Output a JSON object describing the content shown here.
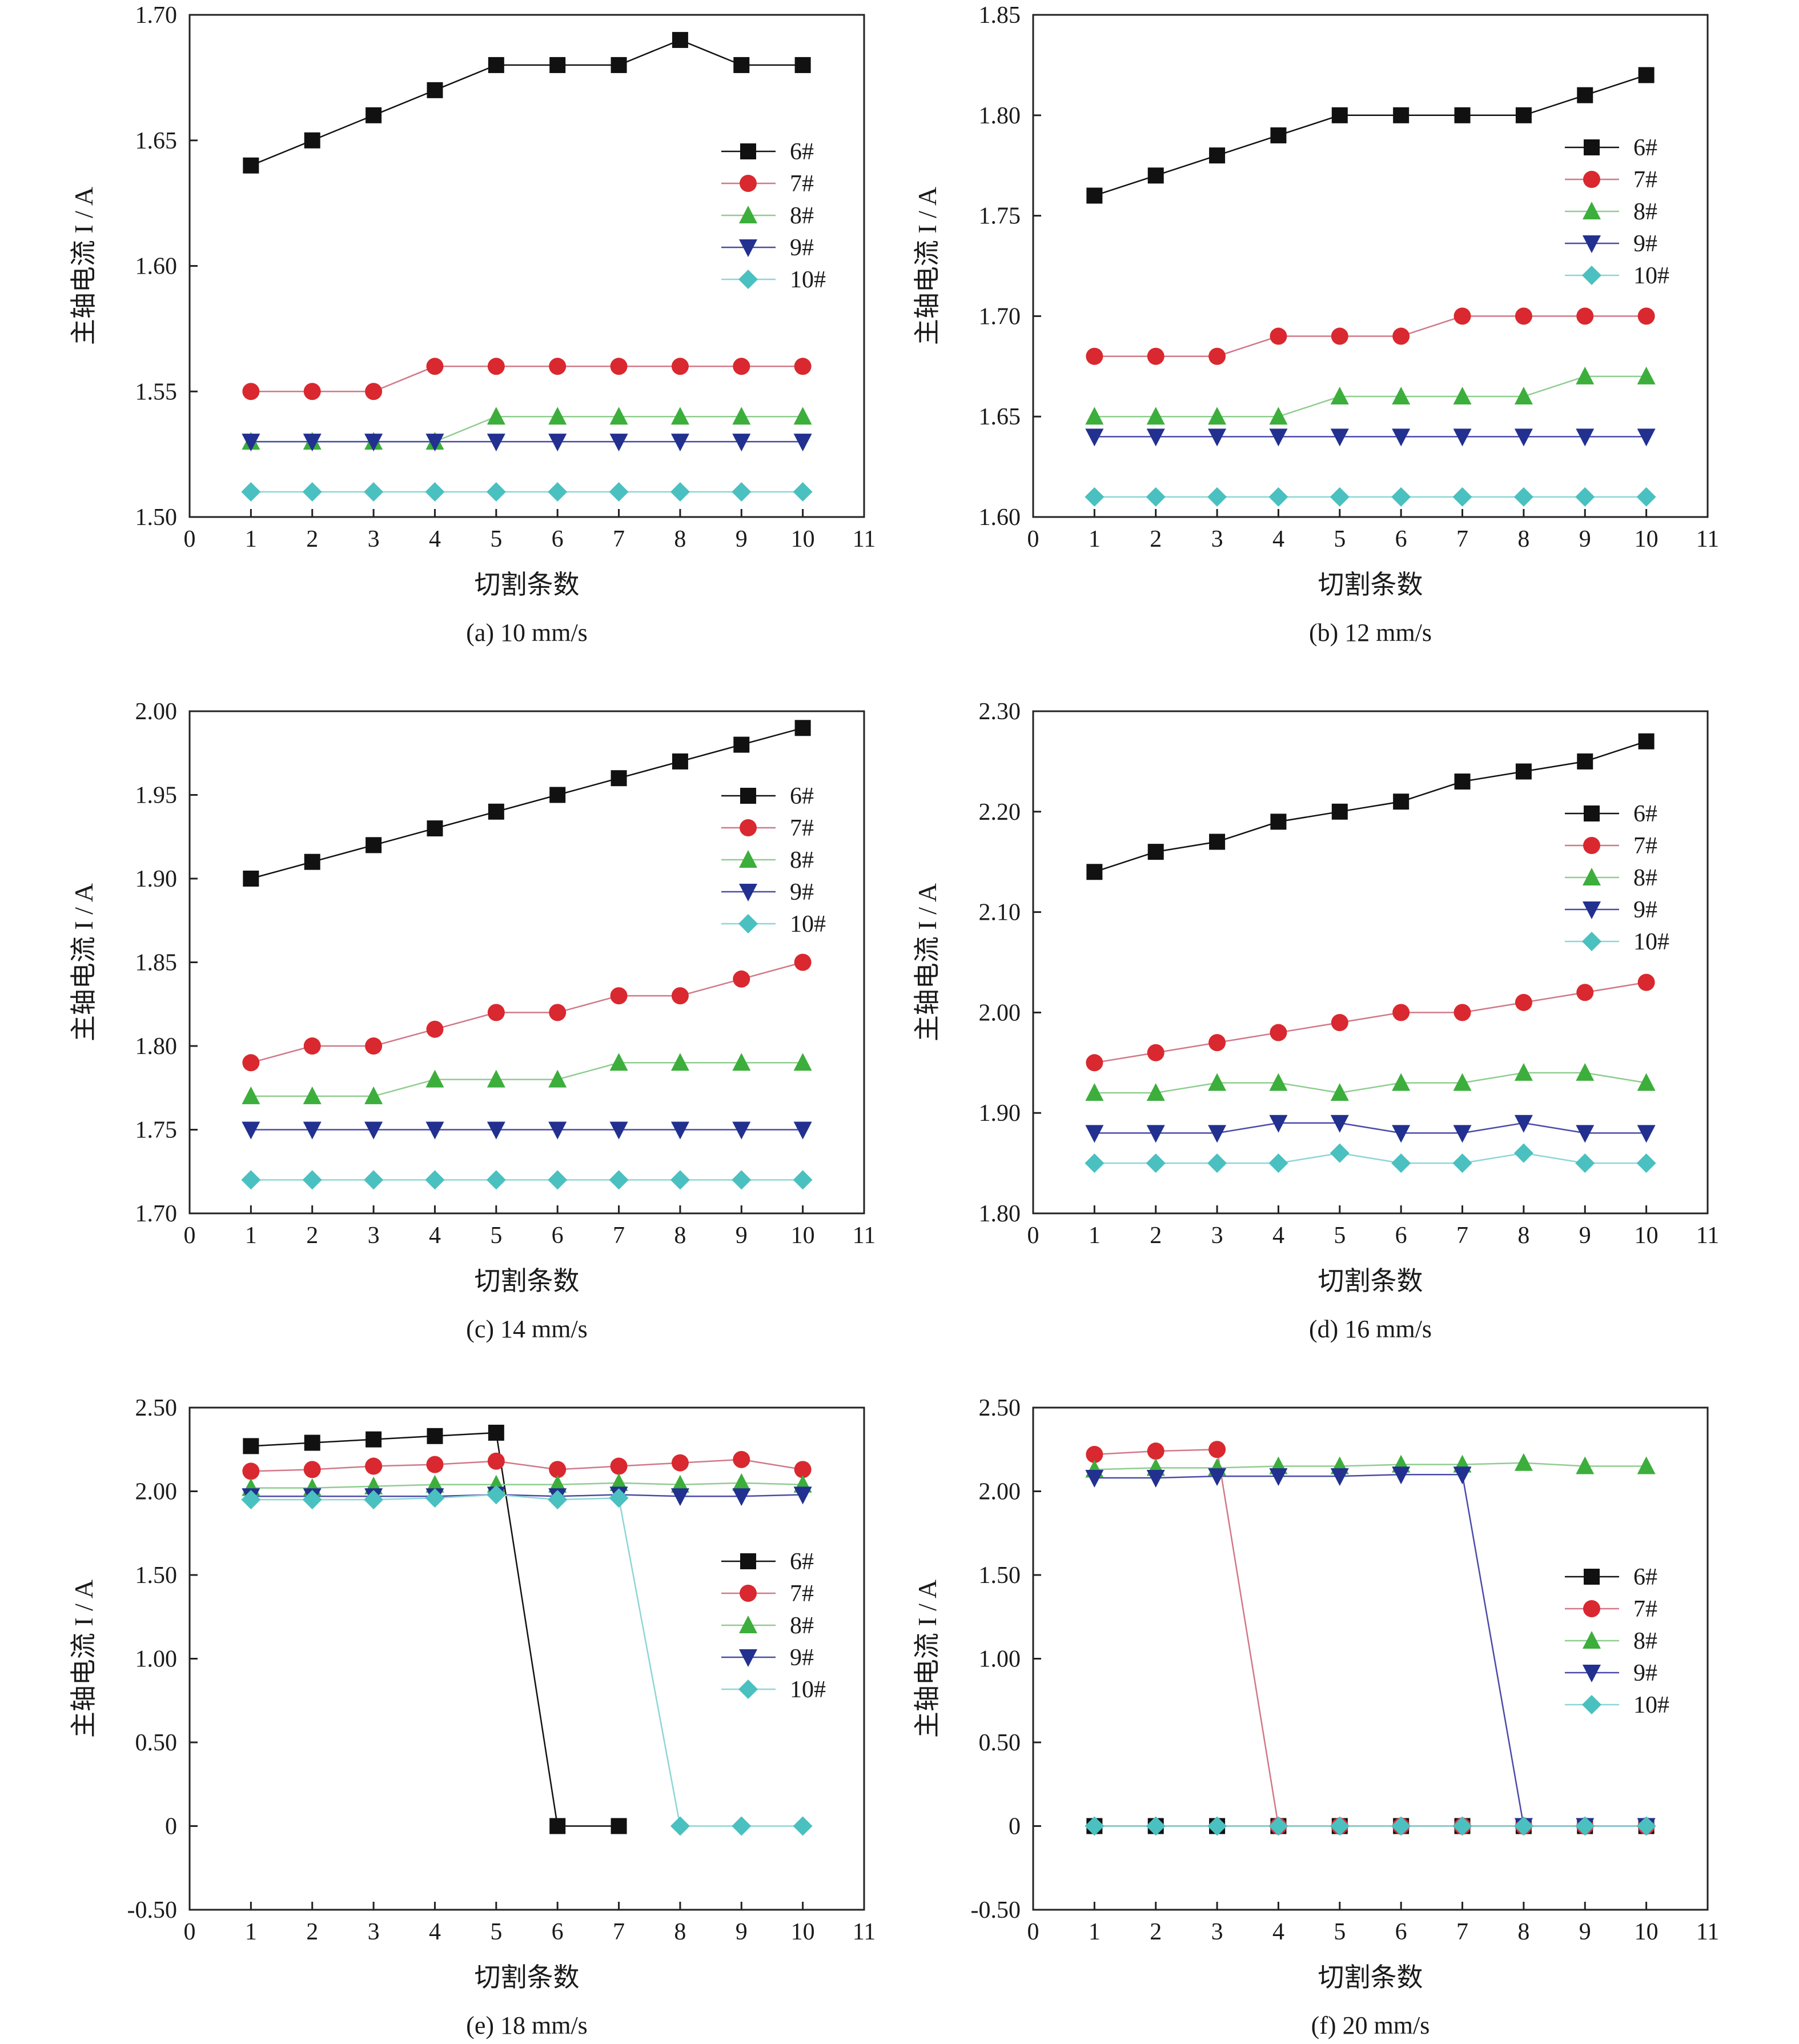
{
  "figure": {
    "styles": {
      "6#": {
        "color": "#111111",
        "marker": "square"
      },
      "7#": {
        "color": "#d9282f",
        "line": "#d07888",
        "marker": "circle"
      },
      "8#": {
        "color": "#3cae3c",
        "line": "#8fcd8f",
        "marker": "triangle-up"
      },
      "9#": {
        "color": "#22308f",
        "line": "#4a4aa8",
        "marker": "triangle-down"
      },
      "10#": {
        "color": "#4bc0c0",
        "line": "#8dd6d6",
        "marker": "diamond"
      }
    }
  },
  "chart_data": [
    {
      "type": "line",
      "caption": "(a) 10 mm/s",
      "xlabel": "切割条数",
      "ylabel": "主轴电流 I / A",
      "xlim": [
        0,
        11
      ],
      "xticks": [
        "0",
        "1",
        "2",
        "3",
        "4",
        "5",
        "6",
        "7",
        "8",
        "9",
        "10",
        "11"
      ],
      "ylim": [
        1.5,
        1.7
      ],
      "yticks": [
        "1.50",
        "1.55",
        "1.60",
        "1.65",
        "1.70"
      ],
      "legend": "right",
      "x": [
        1,
        2,
        3,
        4,
        5,
        6,
        7,
        8,
        9,
        10
      ],
      "series": [
        {
          "name": "6#",
          "values": [
            1.64,
            1.65,
            1.66,
            1.67,
            1.68,
            1.68,
            1.68,
            1.69,
            1.68,
            1.68
          ]
        },
        {
          "name": "7#",
          "values": [
            1.55,
            1.55,
            1.55,
            1.56,
            1.56,
            1.56,
            1.56,
            1.56,
            1.56,
            1.56
          ]
        },
        {
          "name": "8#",
          "values": [
            1.53,
            1.53,
            1.53,
            1.53,
            1.54,
            1.54,
            1.54,
            1.54,
            1.54,
            1.54
          ]
        },
        {
          "name": "9#",
          "values": [
            1.53,
            1.53,
            1.53,
            1.53,
            1.53,
            1.53,
            1.53,
            1.53,
            1.53,
            1.53
          ]
        },
        {
          "name": "10#",
          "values": [
            1.51,
            1.51,
            1.51,
            1.51,
            1.51,
            1.51,
            1.51,
            1.51,
            1.51,
            1.51
          ]
        }
      ]
    },
    {
      "type": "line",
      "caption": "(b) 12 mm/s",
      "xlabel": "切割条数",
      "ylabel": "主轴电流 I / A",
      "xlim": [
        0,
        11
      ],
      "xticks": [
        "0",
        "1",
        "2",
        "3",
        "4",
        "5",
        "6",
        "7",
        "8",
        "9",
        "10",
        "11"
      ],
      "ylim": [
        1.6,
        1.85
      ],
      "yticks": [
        "1.60",
        "1.65",
        "1.70",
        "1.75",
        "1.80",
        "1.85"
      ],
      "legend": "top-right",
      "x": [
        1,
        2,
        3,
        4,
        5,
        6,
        7,
        8,
        9,
        10
      ],
      "series": [
        {
          "name": "6#",
          "values": [
            1.76,
            1.77,
            1.78,
            1.79,
            1.8,
            1.8,
            1.8,
            1.8,
            1.81,
            1.82
          ]
        },
        {
          "name": "7#",
          "values": [
            1.68,
            1.68,
            1.68,
            1.69,
            1.69,
            1.69,
            1.7,
            1.7,
            1.7,
            1.7
          ]
        },
        {
          "name": "8#",
          "values": [
            1.65,
            1.65,
            1.65,
            1.65,
            1.66,
            1.66,
            1.66,
            1.66,
            1.67,
            1.67
          ]
        },
        {
          "name": "9#",
          "values": [
            1.64,
            1.64,
            1.64,
            1.64,
            1.64,
            1.64,
            1.64,
            1.64,
            1.64,
            1.64
          ]
        },
        {
          "name": "10#",
          "values": [
            1.61,
            1.61,
            1.61,
            1.61,
            1.61,
            1.61,
            1.61,
            1.61,
            1.61,
            1.61
          ]
        }
      ]
    },
    {
      "type": "line",
      "caption": "(c) 14 mm/s",
      "xlabel": "切割条数",
      "ylabel": "主轴电流 I / A",
      "xlim": [
        0,
        11
      ],
      "xticks": [
        "0",
        "1",
        "2",
        "3",
        "4",
        "5",
        "6",
        "7",
        "8",
        "9",
        "10",
        "11"
      ],
      "ylim": [
        1.7,
        2.0
      ],
      "yticks": [
        "1.70",
        "1.75",
        "1.80",
        "1.85",
        "1.90",
        "1.95",
        "2.00"
      ],
      "legend": "top-right",
      "x": [
        1,
        2,
        3,
        4,
        5,
        6,
        7,
        8,
        9,
        10
      ],
      "series": [
        {
          "name": "6#",
          "values": [
            1.9,
            1.91,
            1.92,
            1.93,
            1.94,
            1.95,
            1.96,
            1.97,
            1.98,
            1.99
          ]
        },
        {
          "name": "7#",
          "values": [
            1.79,
            1.8,
            1.8,
            1.81,
            1.82,
            1.82,
            1.83,
            1.83,
            1.84,
            1.85
          ]
        },
        {
          "name": "8#",
          "values": [
            1.77,
            1.77,
            1.77,
            1.78,
            1.78,
            1.78,
            1.79,
            1.79,
            1.79,
            1.79
          ]
        },
        {
          "name": "9#",
          "values": [
            1.75,
            1.75,
            1.75,
            1.75,
            1.75,
            1.75,
            1.75,
            1.75,
            1.75,
            1.75
          ]
        },
        {
          "name": "10#",
          "values": [
            1.72,
            1.72,
            1.72,
            1.72,
            1.72,
            1.72,
            1.72,
            1.72,
            1.72,
            1.72
          ]
        }
      ]
    },
    {
      "type": "line",
      "caption": "(d) 16 mm/s",
      "xlabel": "切割条数",
      "ylabel": "主轴电流 I / A",
      "xlim": [
        0,
        11
      ],
      "xticks": [
        "0",
        "1",
        "2",
        "3",
        "4",
        "5",
        "6",
        "7",
        "8",
        "9",
        "10",
        "11"
      ],
      "ylim": [
        1.8,
        2.3
      ],
      "yticks": [
        "1.80",
        "1.90",
        "2.00",
        "2.10",
        "2.20",
        "2.30"
      ],
      "legend": "top-right",
      "x": [
        1,
        2,
        3,
        4,
        5,
        6,
        7,
        8,
        9,
        10
      ],
      "series": [
        {
          "name": "6#",
          "values": [
            2.14,
            2.16,
            2.17,
            2.19,
            2.2,
            2.21,
            2.23,
            2.24,
            2.25,
            2.27
          ]
        },
        {
          "name": "7#",
          "values": [
            1.95,
            1.96,
            1.97,
            1.98,
            1.99,
            2.0,
            2.0,
            2.01,
            2.02,
            2.03
          ]
        },
        {
          "name": "8#",
          "values": [
            1.92,
            1.92,
            1.93,
            1.93,
            1.92,
            1.93,
            1.93,
            1.94,
            1.94,
            1.93
          ]
        },
        {
          "name": "9#",
          "values": [
            1.88,
            1.88,
            1.88,
            1.89,
            1.89,
            1.88,
            1.88,
            1.89,
            1.88,
            1.88
          ]
        },
        {
          "name": "10#",
          "values": [
            1.85,
            1.85,
            1.85,
            1.85,
            1.86,
            1.85,
            1.85,
            1.86,
            1.85,
            1.85
          ]
        }
      ]
    },
    {
      "type": "line",
      "caption": "(e) 18 mm/s",
      "xlabel": "切割条数",
      "ylabel": "主轴电流 I / A",
      "xlim": [
        0,
        11
      ],
      "xticks": [
        "0",
        "1",
        "2",
        "3",
        "4",
        "5",
        "6",
        "7",
        "8",
        "9",
        "10",
        "11"
      ],
      "ylim": [
        -0.5,
        2.5
      ],
      "yticks": [
        "-0.50",
        "0",
        "0.50",
        "1.00",
        "1.50",
        "2.00",
        "2.50"
      ],
      "legend": "right",
      "x": [
        1,
        2,
        3,
        4,
        5,
        6,
        7,
        8,
        9,
        10
      ],
      "series": [
        {
          "name": "6#",
          "values": [
            2.27,
            2.29,
            2.31,
            2.33,
            2.35,
            0,
            0,
            null,
            null,
            null
          ]
        },
        {
          "name": "7#",
          "values": [
            2.12,
            2.13,
            2.15,
            2.16,
            2.18,
            2.13,
            2.15,
            2.17,
            2.19,
            2.13
          ]
        },
        {
          "name": "8#",
          "values": [
            2.02,
            2.02,
            2.03,
            2.04,
            2.04,
            2.04,
            2.05,
            2.04,
            2.05,
            2.04
          ]
        },
        {
          "name": "9#",
          "values": [
            1.97,
            1.97,
            1.97,
            1.97,
            1.98,
            1.97,
            1.98,
            1.97,
            1.97,
            1.98
          ]
        },
        {
          "name": "10#",
          "values": [
            1.95,
            1.95,
            1.95,
            1.96,
            1.98,
            1.95,
            1.96,
            0,
            0,
            0
          ]
        }
      ]
    },
    {
      "type": "line",
      "caption": "(f) 20 mm/s",
      "xlabel": "切割条数",
      "ylabel": "主轴电流 I / A",
      "xlim": [
        0,
        11
      ],
      "xticks": [
        "0",
        "1",
        "2",
        "3",
        "4",
        "5",
        "6",
        "7",
        "8",
        "9",
        "10",
        "11"
      ],
      "ylim": [
        -0.5,
        2.5
      ],
      "yticks": [
        "-0.50",
        "0",
        "0.50",
        "1.00",
        "1.50",
        "2.00",
        "2.50"
      ],
      "legend": "right",
      "x": [
        1,
        2,
        3,
        4,
        5,
        6,
        7,
        8,
        9,
        10
      ],
      "series": [
        {
          "name": "6#",
          "values": [
            0,
            0,
            0,
            0,
            0,
            0,
            0,
            0,
            0,
            0
          ]
        },
        {
          "name": "7#",
          "values": [
            2.22,
            2.24,
            2.25,
            0,
            0,
            0,
            0,
            0,
            0,
            0
          ]
        },
        {
          "name": "8#",
          "values": [
            2.13,
            2.14,
            2.14,
            2.15,
            2.15,
            2.16,
            2.16,
            2.17,
            2.15,
            2.15
          ]
        },
        {
          "name": "9#",
          "values": [
            2.08,
            2.08,
            2.09,
            2.09,
            2.09,
            2.1,
            2.1,
            0,
            0,
            0
          ]
        },
        {
          "name": "10#",
          "values": [
            0,
            0,
            0,
            0,
            0,
            0,
            0,
            0,
            0,
            0
          ]
        }
      ]
    }
  ]
}
